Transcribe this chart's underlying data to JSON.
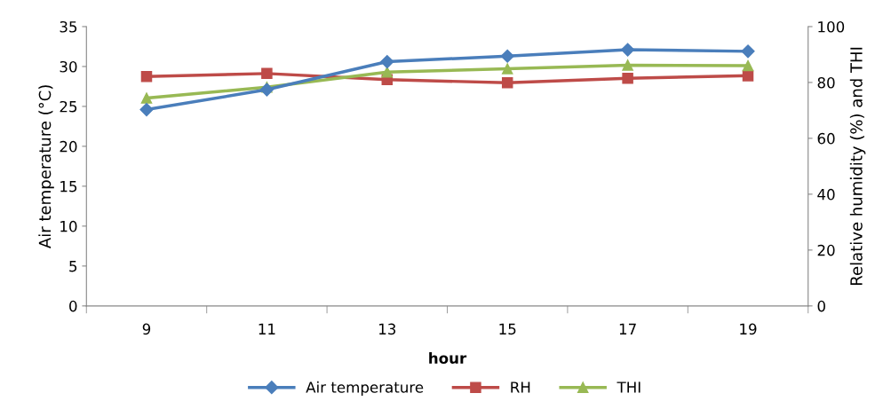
{
  "chart_data": {
    "type": "line",
    "xlabel": "hour",
    "ylabel": "Air temperature (°C)",
    "y2label": "Relative humidity (%) and THI",
    "categories": [
      "9",
      "11",
      "13",
      "15",
      "17",
      "19"
    ],
    "series": [
      {
        "name": "Air temperature",
        "color": "#4a7ebb",
        "marker": "diamond",
        "values": [
          24.6,
          27.1,
          30.6,
          31.3,
          32.1,
          31.9
        ]
      },
      {
        "name": "RH",
        "color": "#be4b48",
        "marker": "square",
        "axis": "y2",
        "values": [
          82.1,
          83.2,
          81.0,
          79.9,
          81.5,
          82.4
        ]
      },
      {
        "name": "THI",
        "color": "#98b954",
        "marker": "triangle",
        "axis": "y2",
        "values": [
          74.4,
          78.3,
          83.7,
          84.9,
          86.2,
          86.0
        ]
      }
    ],
    "ylim": [
      0,
      35
    ],
    "yticks": [
      0,
      5,
      10,
      15,
      20,
      25,
      30,
      35
    ],
    "y2lim": [
      0,
      100
    ],
    "y2ticks": [
      0,
      20,
      40,
      60,
      80,
      100
    ],
    "grid": false,
    "legend": "bottom",
    "line_style": "solid"
  }
}
